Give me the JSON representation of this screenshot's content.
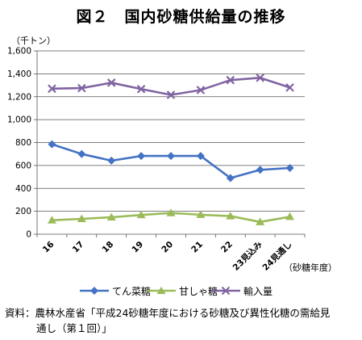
{
  "title": "図２　国内砂糖供給量の推移",
  "chart_data": {
    "type": "line",
    "ylabel": "（千トン）",
    "xlabel": "（砂糖年度）",
    "ylim": [
      0,
      1600
    ],
    "y_ticks": [
      "0",
      "200",
      "400",
      "600",
      "800",
      "1,000",
      "1,200",
      "1,400",
      "1,600"
    ],
    "y_tick_values": [
      0,
      200,
      400,
      600,
      800,
      1000,
      1200,
      1400,
      1600
    ],
    "categories": [
      "16",
      "17",
      "18",
      "19",
      "20",
      "21",
      "22",
      "23見込み",
      "24見通し"
    ],
    "grid": true,
    "legend_position": "bottom",
    "series": [
      {
        "name": "てん菜糖",
        "color": "#4472c4",
        "marker": "diamond",
        "values": [
          785,
          700,
          642,
          683,
          683,
          683,
          490,
          562,
          578
        ]
      },
      {
        "name": "甘しゃ糖",
        "color": "#9bbb59",
        "marker": "triangle",
        "values": [
          122,
          134,
          148,
          168,
          185,
          170,
          158,
          107,
          152
        ]
      },
      {
        "name": "輸入量",
        "color": "#8064a2",
        "marker": "x",
        "values": [
          1270,
          1275,
          1322,
          1267,
          1216,
          1258,
          1345,
          1365,
          1280
        ]
      }
    ]
  },
  "source": {
    "line1": "資料：農林水産省「平成24砂糖年度における砂糖及び異性化糖の需給見",
    "line2": "通し（第１回）」"
  }
}
